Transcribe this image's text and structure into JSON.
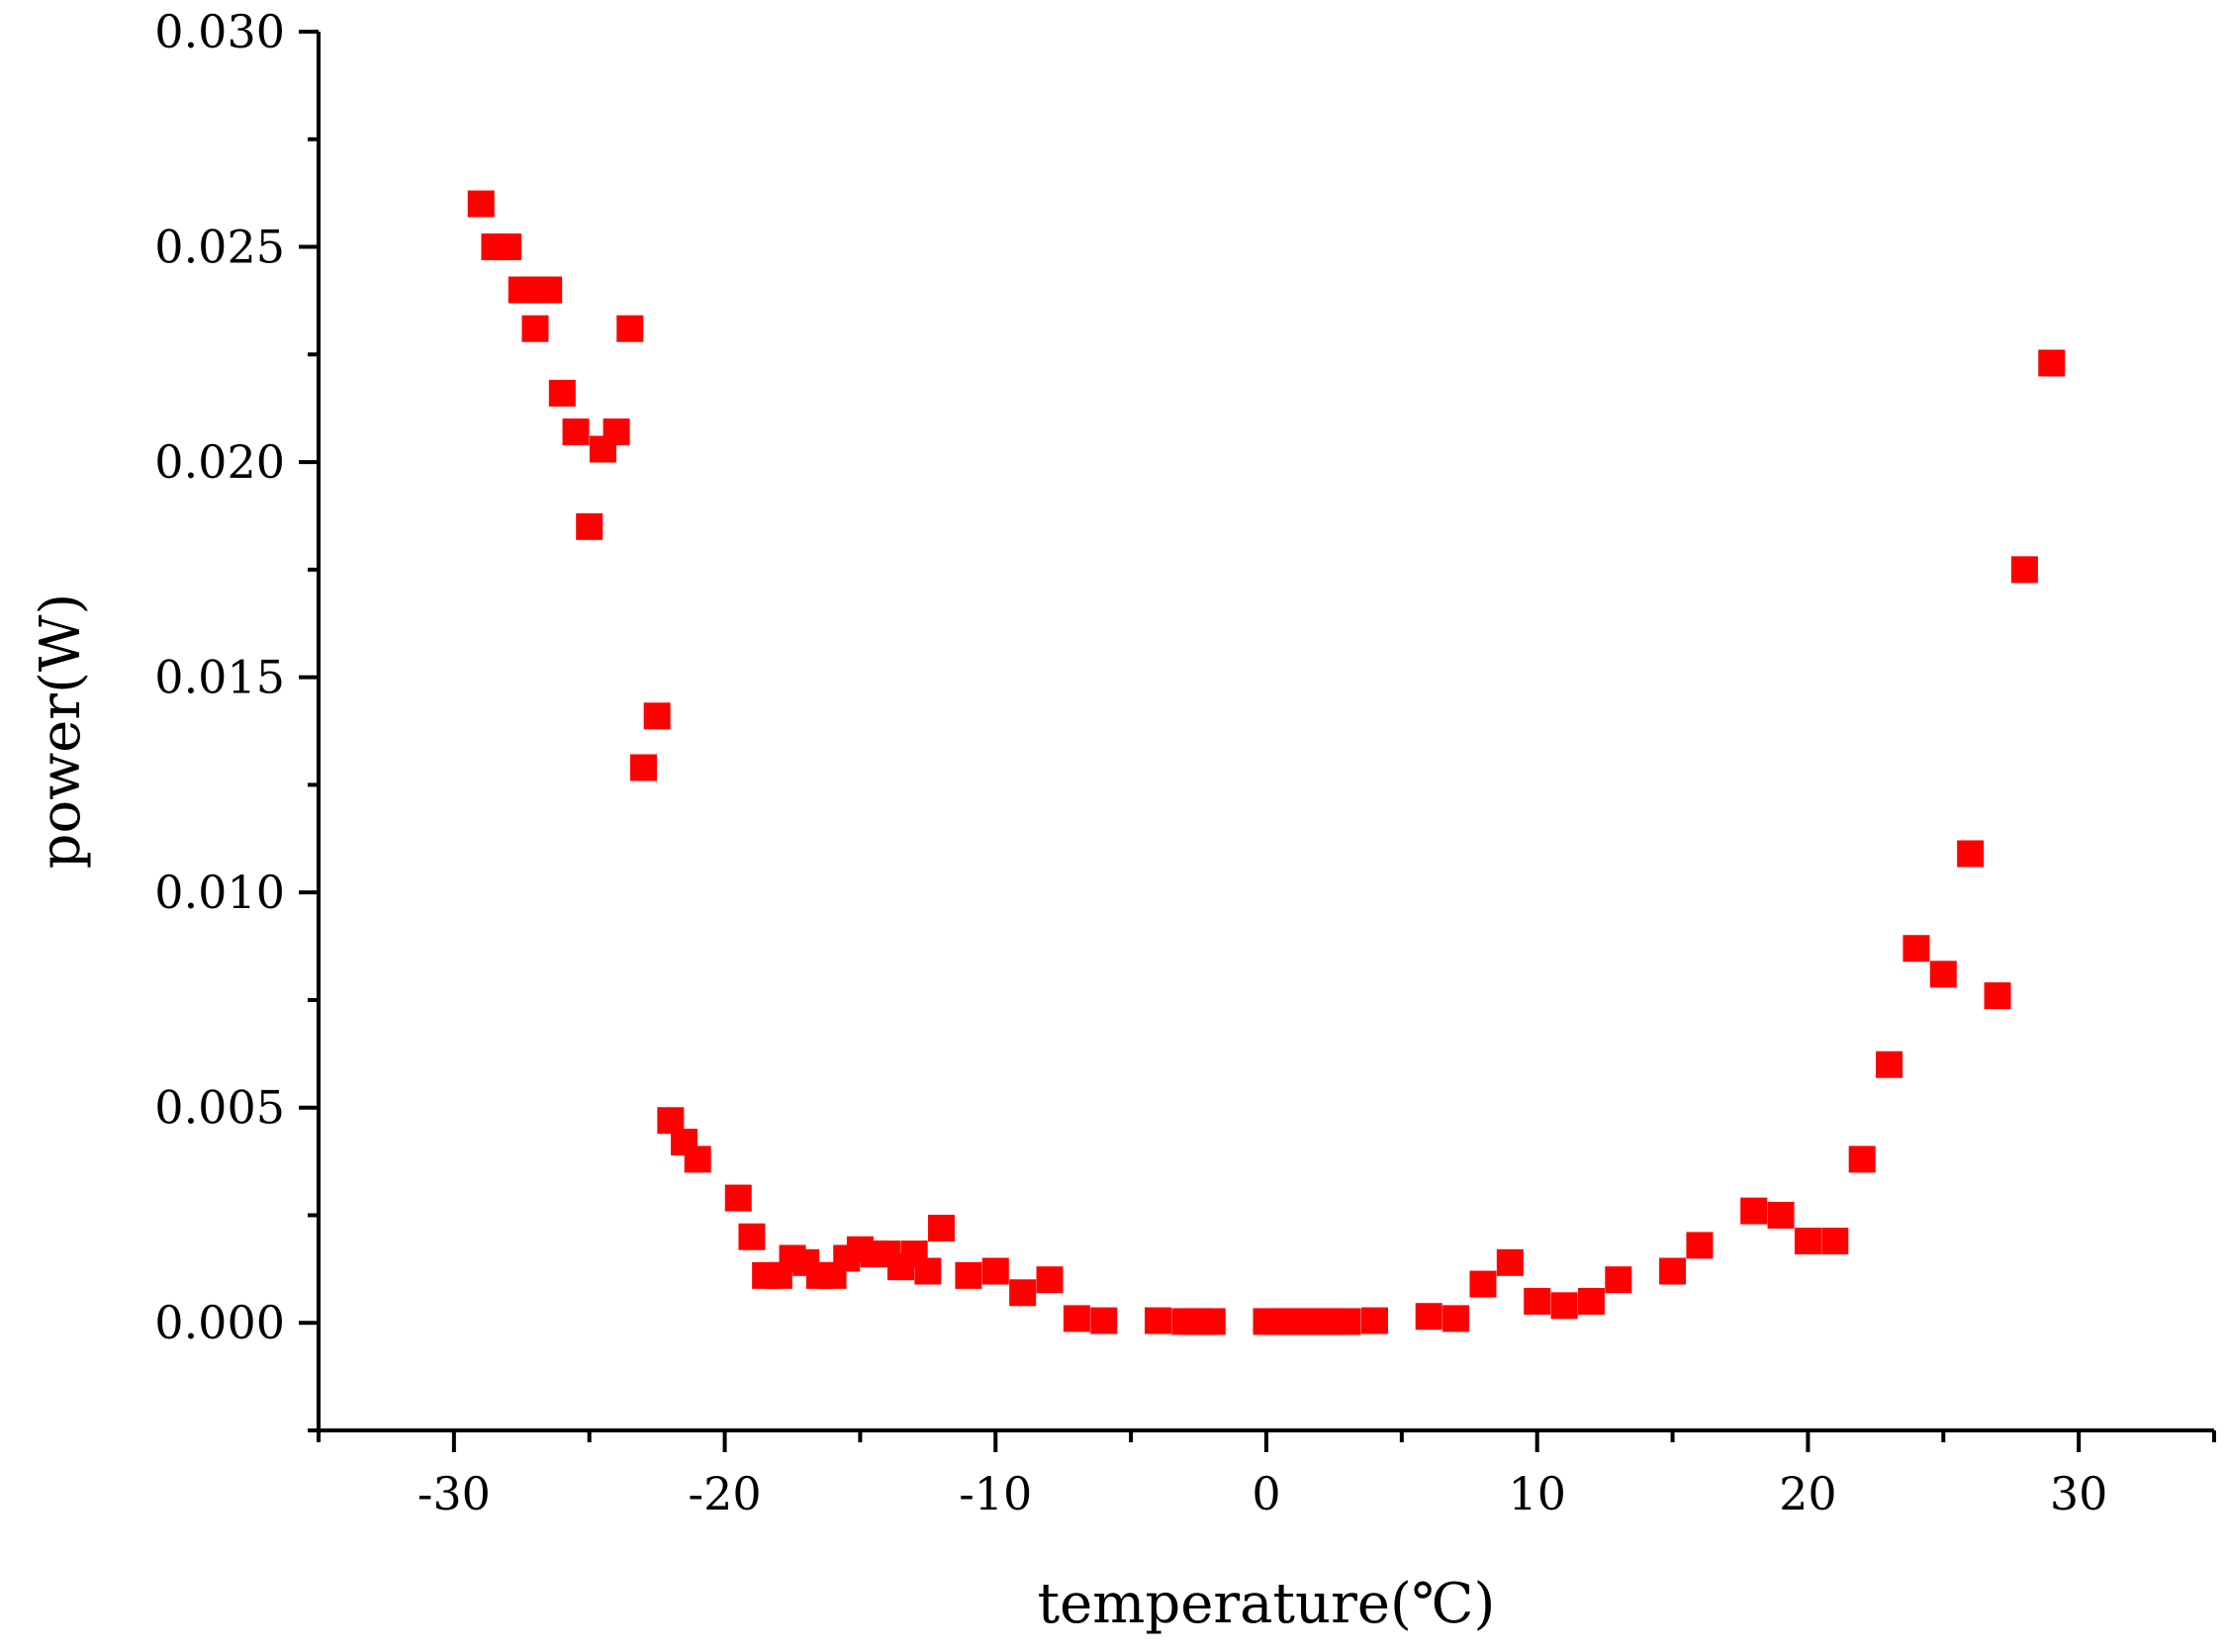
{
  "chart_data": {
    "type": "scatter",
    "title": "",
    "xlabel": "temperature(℃)",
    "ylabel": "power(W)",
    "xlim": [
      -35,
      35
    ],
    "ylim": [
      -0.0025,
      0.03
    ],
    "grid": false,
    "marker_color": "#ff0000",
    "marker_shape": "square",
    "x_ticks": [
      -30,
      -20,
      -10,
      0,
      10,
      20,
      30
    ],
    "x_tick_labels": [
      "-30",
      "-20",
      "-10",
      "0",
      "10",
      "20",
      "30"
    ],
    "y_ticks": [
      0.0,
      0.005,
      0.01,
      0.015,
      0.02,
      0.025,
      0.03
    ],
    "y_tick_labels": [
      "0.000",
      "0.005",
      "0.010",
      "0.015",
      "0.020",
      "0.025",
      "0.030"
    ],
    "series": [
      {
        "points": [
          [
            -29,
            0.026
          ],
          [
            -28.5,
            0.025
          ],
          [
            -28,
            0.025
          ],
          [
            -27.5,
            0.024
          ],
          [
            -27,
            0.0231
          ],
          [
            -27,
            0.024
          ],
          [
            -26.5,
            0.024
          ],
          [
            -26,
            0.0216
          ],
          [
            -25.5,
            0.0207
          ],
          [
            -25,
            0.0185
          ],
          [
            -24.5,
            0.0203
          ],
          [
            -24,
            0.0207
          ],
          [
            -23.5,
            0.0231
          ],
          [
            -23,
            0.0129
          ],
          [
            -22.5,
            0.0141
          ],
          [
            -22,
            0.0047
          ],
          [
            -21.5,
            0.0042
          ],
          [
            -21,
            0.0038
          ],
          [
            -19.5,
            0.0029
          ],
          [
            -19,
            0.002
          ],
          [
            -18.5,
            0.0011
          ],
          [
            -18,
            0.0011
          ],
          [
            -17.5,
            0.0015
          ],
          [
            -17,
            0.0014
          ],
          [
            -16.5,
            0.0011
          ],
          [
            -16,
            0.0011
          ],
          [
            -15.5,
            0.0015
          ],
          [
            -15,
            0.0017
          ],
          [
            -14.5,
            0.0016
          ],
          [
            -14,
            0.0016
          ],
          [
            -13.5,
            0.0013
          ],
          [
            -13,
            0.0016
          ],
          [
            -12.5,
            0.0012
          ],
          [
            -12,
            0.0022
          ],
          [
            -11,
            0.0011
          ],
          [
            -10,
            0.0012
          ],
          [
            -9,
            0.0007
          ],
          [
            -8,
            0.001
          ],
          [
            -7,
            0.0001
          ],
          [
            -6,
            5e-05
          ],
          [
            -4,
            5e-05
          ],
          [
            -3,
            3e-05
          ],
          [
            -2.5,
            3e-05
          ],
          [
            -2,
            3e-05
          ],
          [
            0,
            3e-05
          ],
          [
            0.5,
            3e-05
          ],
          [
            1,
            3e-05
          ],
          [
            1.5,
            3e-05
          ],
          [
            2,
            3e-05
          ],
          [
            2.5,
            3e-05
          ],
          [
            3,
            3e-05
          ],
          [
            4,
            5e-05
          ],
          [
            6,
            0.00015
          ],
          [
            7,
            0.0001
          ],
          [
            8,
            0.0009
          ],
          [
            9,
            0.0014
          ],
          [
            10,
            0.0005
          ],
          [
            11,
            0.0004
          ],
          [
            12,
            0.0005
          ],
          [
            13,
            0.001
          ],
          [
            15,
            0.0012
          ],
          [
            16,
            0.0018
          ],
          [
            18,
            0.0026
          ],
          [
            19,
            0.0025
          ],
          [
            20,
            0.0019
          ],
          [
            21,
            0.0019
          ],
          [
            22,
            0.0038
          ],
          [
            23,
            0.006
          ],
          [
            24,
            0.0087
          ],
          [
            25,
            0.0081
          ],
          [
            26,
            0.0109
          ],
          [
            27,
            0.0076
          ],
          [
            28,
            0.0175
          ],
          [
            29,
            0.0223
          ]
        ]
      }
    ]
  }
}
